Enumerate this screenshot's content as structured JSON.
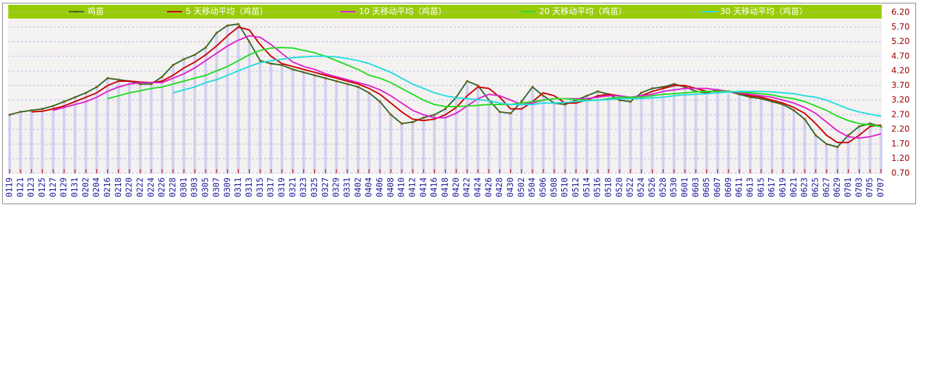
{
  "chart_data": {
    "type": "line",
    "grid": true,
    "legend": "top",
    "categories": [
      "0119",
      "0121",
      "0123",
      "0125",
      "0127",
      "0129",
      "0131",
      "0202",
      "0204",
      "0216",
      "0218",
      "0220",
      "0222",
      "0224",
      "0226",
      "0228",
      "0301",
      "0303",
      "0305",
      "0307",
      "0309",
      "0311",
      "0313",
      "0315",
      "0317",
      "0319",
      "0321",
      "0323",
      "0325",
      "0327",
      "0329",
      "0331",
      "0402",
      "0404",
      "0406",
      "0408",
      "0410",
      "0412",
      "0414",
      "0416",
      "0418",
      "0420",
      "0422",
      "0424",
      "0426",
      "0428",
      "0430",
      "0502",
      "0504",
      "0506",
      "0508",
      "0510",
      "0512",
      "0514",
      "0516",
      "0518",
      "0520",
      "0522",
      "0524",
      "0526",
      "0528",
      "0530",
      "0601",
      "0603",
      "0605",
      "0607",
      "0609",
      "0611",
      "0613",
      "0615",
      "0617",
      "0619",
      "0621",
      "0623",
      "0625",
      "0627",
      "0629",
      "0701",
      "0703",
      "0705",
      "0707"
    ],
    "ylim": [
      0.7,
      6.2
    ],
    "yticks": [
      {
        "value": 0.7,
        "label": "0.70"
      },
      {
        "value": 1.2,
        "label": "1.20"
      },
      {
        "value": 1.7,
        "label": "1.70"
      },
      {
        "value": 2.2,
        "label": "2.20"
      },
      {
        "value": 2.7,
        "label": "2.70"
      },
      {
        "value": 3.2,
        "label": "3.20"
      },
      {
        "value": 3.7,
        "label": "3.70"
      },
      {
        "value": 4.2,
        "label": "4.20"
      },
      {
        "value": 4.7,
        "label": "4.70"
      },
      {
        "value": 5.2,
        "label": "5.20"
      },
      {
        "value": 5.7,
        "label": "5.70"
      },
      {
        "value": 6.2,
        "label": "6.20"
      }
    ],
    "series": [
      {
        "name": "鸡苗",
        "color": "#2e6b2e",
        "values": [
          2.7,
          2.8,
          2.85,
          2.9,
          3.0,
          3.15,
          3.3,
          3.45,
          3.65,
          3.95,
          3.9,
          3.85,
          3.75,
          3.75,
          4.0,
          4.4,
          4.6,
          4.75,
          5.0,
          5.5,
          5.75,
          5.8,
          5.2,
          4.55,
          4.45,
          4.4,
          4.25,
          4.15,
          4.05,
          3.95,
          3.85,
          3.75,
          3.65,
          3.45,
          3.15,
          2.7,
          2.4,
          2.45,
          2.6,
          2.7,
          2.9,
          3.3,
          3.85,
          3.7,
          3.2,
          2.8,
          2.75,
          3.15,
          3.65,
          3.35,
          3.1,
          3.05,
          3.2,
          3.35,
          3.5,
          3.4,
          3.2,
          3.15,
          3.45,
          3.6,
          3.65,
          3.75,
          3.65,
          3.5,
          3.45,
          3.55,
          3.5,
          3.4,
          3.3,
          3.25,
          3.15,
          3.05,
          2.85,
          2.55,
          2.0,
          1.7,
          1.6,
          2.0,
          2.3,
          2.4,
          2.3
        ]
      },
      {
        "name": "5 天移动平均（鸡苗）",
        "color": "#cc0000",
        "values": [
          null,
          null,
          2.8,
          2.82,
          2.9,
          3.0,
          3.15,
          3.3,
          3.45,
          3.7,
          3.85,
          3.85,
          3.82,
          3.8,
          3.85,
          4.05,
          4.3,
          4.5,
          4.75,
          5.05,
          5.4,
          5.7,
          5.6,
          5.1,
          4.7,
          4.45,
          4.35,
          4.25,
          4.15,
          4.05,
          3.95,
          3.85,
          3.75,
          3.6,
          3.4,
          3.1,
          2.8,
          2.55,
          2.5,
          2.55,
          2.7,
          2.95,
          3.35,
          3.65,
          3.6,
          3.3,
          2.9,
          2.9,
          3.15,
          3.45,
          3.35,
          3.1,
          3.1,
          3.2,
          3.35,
          3.4,
          3.35,
          3.25,
          3.35,
          3.5,
          3.6,
          3.7,
          3.7,
          3.6,
          3.5,
          3.5,
          3.5,
          3.45,
          3.35,
          3.3,
          3.2,
          3.1,
          2.95,
          2.75,
          2.4,
          2.0,
          1.75,
          1.75,
          2.0,
          2.3,
          2.35
        ]
      },
      {
        "name": "10 天移动平均（鸡苗）",
        "color": "#dd22cc",
        "values": [
          null,
          null,
          null,
          null,
          2.85,
          2.95,
          3.05,
          3.15,
          3.3,
          3.5,
          3.65,
          3.75,
          3.8,
          3.8,
          3.8,
          3.95,
          4.1,
          4.3,
          4.55,
          4.8,
          5.05,
          5.25,
          5.4,
          5.35,
          5.1,
          4.8,
          4.5,
          4.35,
          4.25,
          4.1,
          4.0,
          3.9,
          3.8,
          3.7,
          3.55,
          3.35,
          3.1,
          2.85,
          2.7,
          2.6,
          2.6,
          2.75,
          3.0,
          3.25,
          3.4,
          3.35,
          3.2,
          3.05,
          3.1,
          3.2,
          3.25,
          3.25,
          3.25,
          3.25,
          3.3,
          3.35,
          3.35,
          3.3,
          3.35,
          3.4,
          3.5,
          3.55,
          3.6,
          3.6,
          3.6,
          3.55,
          3.5,
          3.45,
          3.4,
          3.35,
          3.3,
          3.2,
          3.1,
          2.95,
          2.75,
          2.45,
          2.15,
          1.95,
          1.9,
          1.95,
          2.05
        ]
      },
      {
        "name": "20 天移动平均（鸡苗）",
        "color": "#22dd22",
        "values": [
          null,
          null,
          null,
          null,
          null,
          null,
          null,
          null,
          null,
          3.25,
          3.35,
          3.45,
          3.52,
          3.6,
          3.65,
          3.75,
          3.85,
          3.95,
          4.05,
          4.2,
          4.35,
          4.55,
          4.75,
          4.9,
          4.98,
          5.0,
          4.98,
          4.9,
          4.82,
          4.7,
          4.55,
          4.4,
          4.25,
          4.05,
          3.95,
          3.8,
          3.6,
          3.4,
          3.2,
          3.05,
          2.98,
          2.98,
          3.0,
          3.02,
          3.05,
          3.05,
          3.05,
          3.1,
          3.15,
          3.2,
          3.25,
          3.25,
          3.22,
          3.2,
          3.2,
          3.25,
          3.3,
          3.3,
          3.3,
          3.35,
          3.4,
          3.42,
          3.45,
          3.48,
          3.5,
          3.5,
          3.5,
          3.48,
          3.45,
          3.42,
          3.38,
          3.3,
          3.25,
          3.15,
          3.0,
          2.85,
          2.65,
          2.5,
          2.4,
          2.35,
          2.3
        ]
      },
      {
        "name": "30 天移动平均（鸡苗）",
        "color": "#22dddd",
        "values": [
          null,
          null,
          null,
          null,
          null,
          null,
          null,
          null,
          null,
          null,
          null,
          null,
          null,
          null,
          null,
          3.45,
          3.55,
          3.65,
          3.8,
          3.9,
          4.05,
          4.2,
          4.35,
          4.48,
          4.55,
          4.6,
          4.65,
          4.68,
          4.7,
          4.7,
          4.68,
          4.62,
          4.55,
          4.45,
          4.3,
          4.15,
          3.95,
          3.75,
          3.6,
          3.45,
          3.35,
          3.28,
          3.25,
          3.22,
          3.18,
          3.1,
          3.05,
          3.05,
          3.05,
          3.1,
          3.1,
          3.12,
          3.15,
          3.18,
          3.2,
          3.22,
          3.25,
          3.25,
          3.25,
          3.28,
          3.3,
          3.35,
          3.38,
          3.4,
          3.42,
          3.45,
          3.48,
          3.5,
          3.5,
          3.5,
          3.48,
          3.45,
          3.42,
          3.35,
          3.3,
          3.2,
          3.05,
          2.9,
          2.8,
          2.72,
          2.65
        ]
      }
    ]
  }
}
